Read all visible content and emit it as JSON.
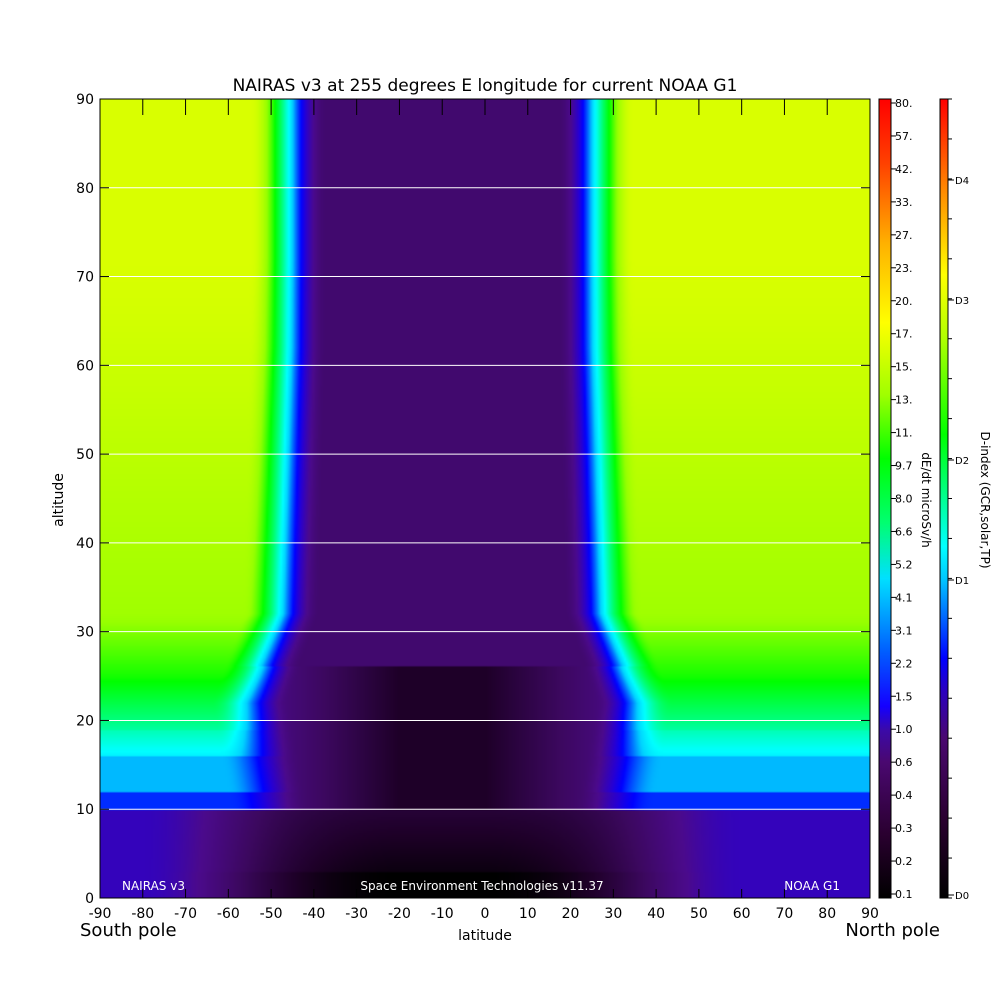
{
  "chart_data": {
    "type": "heatmap",
    "title": "NAIRAS v3 at 255 degrees E longitude for current NOAA G1",
    "xlabel": "latitude",
    "ylabel": "altitude",
    "xlim": [
      -90,
      90
    ],
    "ylim": [
      0,
      90
    ],
    "x_ticks": [
      "-90",
      "-80",
      "-70",
      "-60",
      "-50",
      "-40",
      "-30",
      "-20",
      "-10",
      "0",
      "10",
      "20",
      "30",
      "40",
      "50",
      "60",
      "70",
      "80",
      "90"
    ],
    "y_ticks": [
      "0",
      "10",
      "20",
      "30",
      "40",
      "50",
      "60",
      "70",
      "80",
      "90"
    ],
    "grid": "horizontal",
    "x_end_labels": {
      "left": "South pole",
      "right": "North pole"
    },
    "annotations": {
      "left": "NAIRAS v3",
      "center": "Space Environment Technologies v11.37",
      "right": "NOAA G1"
    },
    "colorbar_dose": {
      "label": "dE/dt microSv/h",
      "ticks": [
        "0.1",
        "0.2",
        "0.3",
        "0.4",
        "0.6",
        "1.0",
        "1.5",
        "2.2",
        "3.1",
        "4.1",
        "5.2",
        "6.6",
        "8.0",
        "9.7",
        "11.",
        "13.",
        "15.",
        "17.",
        "20.",
        "23.",
        "27.",
        "33.",
        "42.",
        "57.",
        "80."
      ],
      "scale": "log"
    },
    "colorbar_dindex": {
      "label": "D-index (GCR,solar,TP)",
      "ticks": [
        "D0",
        "D1",
        "D2",
        "D3",
        "D4"
      ]
    },
    "field_description_levels": {
      "polar_cap_high_alt": "yellow-green (~15-17 microSv/h)",
      "polar_low_alt_below_10": "purple (~0.3)",
      "equator_low_alt": "black (~0.1)",
      "cutoff_transition_latitudes": [
        -50,
        30
      ]
    },
    "colormap": [
      "#000000",
      "#2a0030",
      "#4a0870",
      "#3d0a9a",
      "#0000ff",
      "#00c8ff",
      "#00ffff",
      "#00ff00",
      "#c8ff00",
      "#ffff00",
      "#ff9000",
      "#ff0000"
    ]
  }
}
